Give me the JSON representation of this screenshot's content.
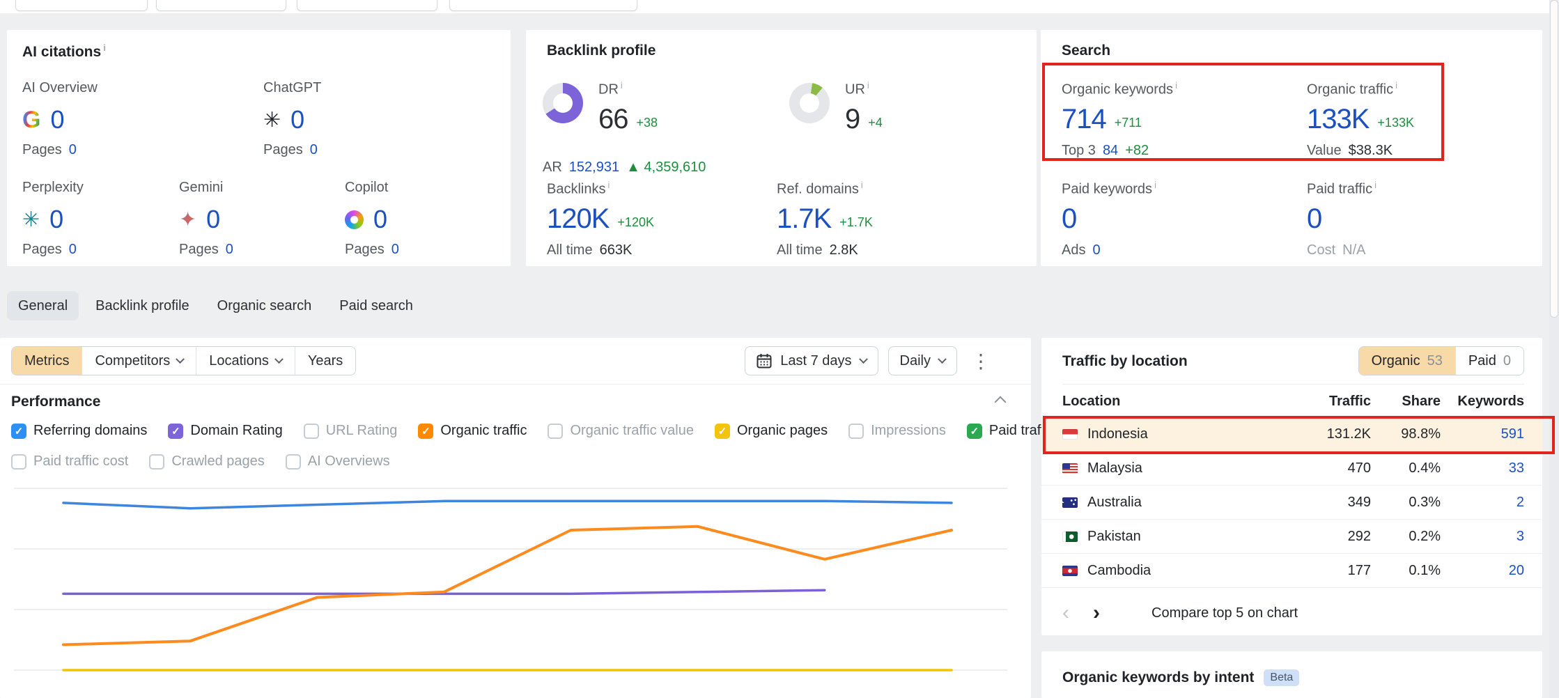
{
  "colors": {
    "accent_red": "#e0261c",
    "link_blue": "#1b50c0",
    "green": "#1e8e3e",
    "active_tan": "#f8d9a8"
  },
  "ai_citations": {
    "title": "AI citations",
    "items": [
      {
        "label": "AI Overview",
        "icon": "google-g",
        "value": "0",
        "pages_label": "Pages",
        "pages_value": "0"
      },
      {
        "label": "ChatGPT",
        "icon": "openai",
        "value": "0",
        "pages_label": "Pages",
        "pages_value": "0"
      },
      {
        "label": "Perplexity",
        "icon": "perplexity",
        "value": "0",
        "pages_label": "Pages",
        "pages_value": "0"
      },
      {
        "label": "Gemini",
        "icon": "gemini",
        "value": "0",
        "pages_label": "Pages",
        "pages_value": "0"
      },
      {
        "label": "Copilot",
        "icon": "copilot",
        "value": "0",
        "pages_label": "Pages",
        "pages_value": "0"
      }
    ]
  },
  "backlink_profile": {
    "title": "Backlink profile",
    "dr": {
      "label": "DR",
      "value": "66",
      "delta": "+38",
      "percent": 66,
      "color": "#7c64d8"
    },
    "ar": {
      "label": "AR",
      "value": "152,931",
      "delta": "▲ 4,359,610"
    },
    "ur": {
      "label": "UR",
      "value": "9",
      "delta": "+4",
      "percent": 9,
      "color": "#8bbb44"
    },
    "backlinks": {
      "label": "Backlinks",
      "value": "120K",
      "delta": "+120K",
      "alltime_label": "All time",
      "alltime_value": "663K"
    },
    "ref_domains": {
      "label": "Ref. domains",
      "value": "1.7K",
      "delta": "+1.7K",
      "alltime_label": "All time",
      "alltime_value": "2.8K"
    }
  },
  "search": {
    "title": "Search",
    "organic_keywords": {
      "label": "Organic keywords",
      "value": "714",
      "delta": "+711",
      "sub_label": "Top 3",
      "sub_value": "84",
      "sub_delta": "+82"
    },
    "organic_traffic": {
      "label": "Organic traffic",
      "value": "133K",
      "delta": "+133K",
      "sub_label": "Value",
      "sub_value": "$38.3K"
    },
    "paid_keywords": {
      "label": "Paid keywords",
      "value": "0",
      "sub_label": "Ads",
      "sub_value": "0"
    },
    "paid_traffic": {
      "label": "Paid traffic",
      "value": "0",
      "sub_label": "Cost",
      "sub_value": "N/A"
    }
  },
  "tabs": {
    "items": [
      {
        "label": "General",
        "active": true
      },
      {
        "label": "Backlink profile",
        "active": false
      },
      {
        "label": "Organic search",
        "active": false
      },
      {
        "label": "Paid search",
        "active": false
      }
    ]
  },
  "filters": {
    "metrics_label": "Metrics",
    "competitors_label": "Competitors",
    "locations_label": "Locations",
    "years_label": "Years",
    "date_range": "Last 7 days",
    "granularity": "Daily"
  },
  "performance": {
    "title": "Performance",
    "checkboxes": [
      {
        "label": "Referring domains",
        "checked": true,
        "color": "#2e90f3"
      },
      {
        "label": "Domain Rating",
        "checked": true,
        "color": "#7e64d9"
      },
      {
        "label": "URL Rating",
        "checked": false,
        "color": null
      },
      {
        "label": "Organic traffic",
        "checked": true,
        "color": "#ff8a00"
      },
      {
        "label": "Organic traffic value",
        "checked": false,
        "color": null
      },
      {
        "label": "Organic pages",
        "checked": true,
        "color": "#f2c40f"
      },
      {
        "label": "Impressions",
        "checked": false,
        "color": null
      },
      {
        "label": "Paid traffic",
        "checked": true,
        "color": "#2aa952"
      },
      {
        "label": "Paid traffic cost",
        "checked": false,
        "color": null
      },
      {
        "label": "Crawled pages",
        "checked": false,
        "color": null
      },
      {
        "label": "AI Overviews",
        "checked": false,
        "color": null
      }
    ]
  },
  "chart_data": {
    "type": "line",
    "title": "Performance (last 7 days, daily)",
    "x_labels": [],
    "xlabel": "",
    "ylabel": "",
    "note": "Axes unlabeled in visible area; y values are percent of plot height above baseline, estimated from gridlines",
    "grid": true,
    "gridline_count": 4,
    "legend_position": "checkbox-row-above-chart",
    "series": [
      {
        "name": "Referring domains",
        "color": "#3d85dd",
        "y_norm": [
          92,
          89,
          91,
          93,
          93,
          93,
          93,
          92
        ]
      },
      {
        "name": "Organic traffic",
        "color": "#ff8a1e",
        "y_norm": [
          14,
          16,
          40,
          43,
          77,
          79,
          61,
          77
        ]
      },
      {
        "name": "Domain Rating",
        "color": "#7b61d6",
        "y_norm": [
          42,
          42,
          42,
          42,
          42,
          43,
          44
        ]
      },
      {
        "name": "Organic pages",
        "color": "#f2c400",
        "y_norm": [
          0,
          0,
          0,
          0,
          0,
          0,
          0,
          0
        ]
      }
    ]
  },
  "traffic_by_location": {
    "title": "Traffic by location",
    "toggle": {
      "organic_label": "Organic",
      "organic_count": "53",
      "paid_label": "Paid",
      "paid_count": "0"
    },
    "columns": [
      "Location",
      "Traffic",
      "Share",
      "Keywords"
    ],
    "rows": [
      {
        "location": "Indonesia",
        "flag": "id",
        "traffic": "131.2K",
        "share": "98.8%",
        "keywords": "591",
        "highlighted": true
      },
      {
        "location": "Malaysia",
        "flag": "my",
        "traffic": "470",
        "share": "0.4%",
        "keywords": "33",
        "highlighted": false
      },
      {
        "location": "Australia",
        "flag": "au",
        "traffic": "349",
        "share": "0.3%",
        "keywords": "2",
        "highlighted": false
      },
      {
        "location": "Pakistan",
        "flag": "pk",
        "traffic": "292",
        "share": "0.2%",
        "keywords": "3",
        "highlighted": false
      },
      {
        "location": "Cambodia",
        "flag": "kh",
        "traffic": "177",
        "share": "0.1%",
        "keywords": "20",
        "highlighted": false
      }
    ],
    "pagination": {
      "prev": "‹",
      "next": "›"
    },
    "compare_label": "Compare top 5 on chart"
  },
  "keywords_by_intent": {
    "title": "Organic keywords by intent",
    "badge": "Beta"
  },
  "icons": {
    "chatgpt_glyph": "✳",
    "perplexity_glyph": "✳",
    "gemini_glyph": "✦",
    "kebab_glyph": "⋮"
  }
}
